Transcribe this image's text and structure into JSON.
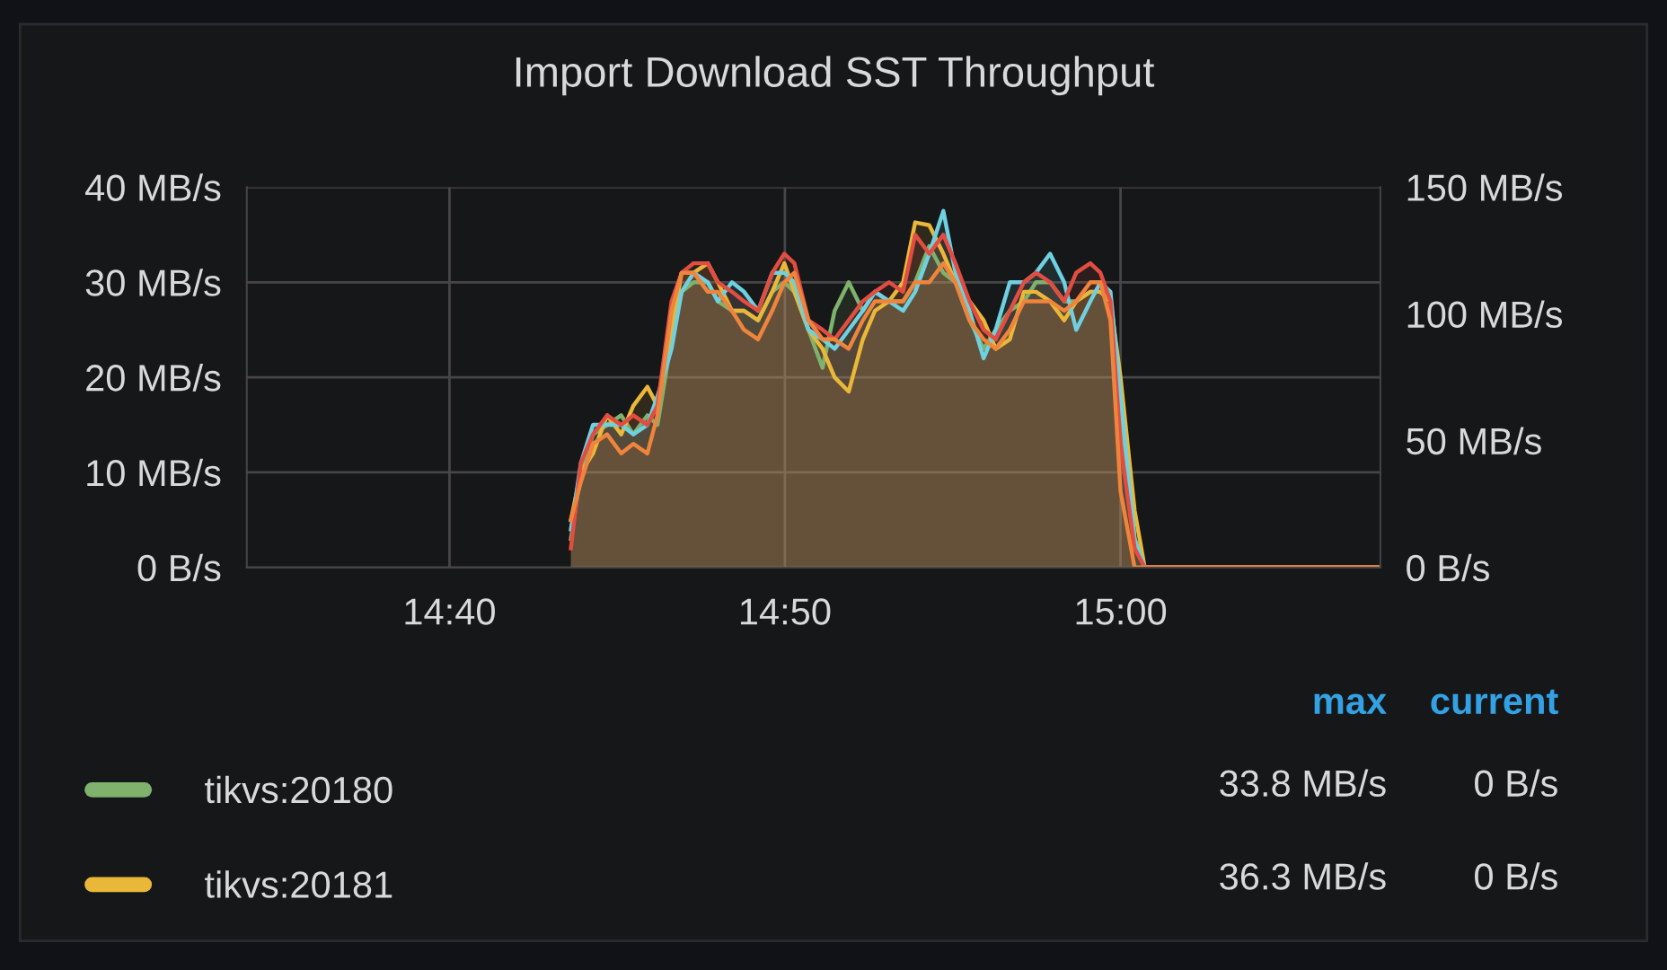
{
  "chart_data": {
    "type": "area",
    "title": "Import Download SST Throughput",
    "x": [
      14.727,
      14.732,
      14.738,
      14.745,
      14.752,
      14.758,
      14.765,
      14.77,
      14.777,
      14.782,
      14.788,
      14.795,
      14.8,
      14.807,
      14.813,
      14.82,
      14.827,
      14.833,
      14.838,
      14.845,
      14.852,
      14.858,
      14.865,
      14.872,
      14.878,
      14.885,
      14.892,
      14.898,
      14.905,
      14.912,
      14.918,
      14.925,
      14.932,
      14.938,
      14.945,
      14.952,
      14.958,
      14.965,
      14.972,
      14.978,
      14.985,
      14.99,
      14.995,
      15.0,
      15.007,
      15.012,
      15.033,
      15.129
    ],
    "series": [
      {
        "name": "tikvs:20180",
        "color": "#7eb26d",
        "values": [
          3,
          10,
          14,
          15,
          16,
          14,
          16,
          15,
          24,
          29,
          30,
          30,
          28,
          27,
          27,
          26,
          29,
          30,
          29,
          25,
          21,
          27,
          30,
          27,
          29,
          28,
          28,
          30,
          33.8,
          31,
          30,
          26,
          23,
          25,
          27,
          28,
          30,
          30,
          28,
          28,
          29,
          29,
          28,
          16,
          3,
          0,
          0,
          0
        ]
      },
      {
        "name": "tikvs:20181",
        "color": "#eab839",
        "values": [
          5,
          10,
          12,
          16,
          14,
          17,
          19,
          17,
          25,
          31,
          31,
          32,
          30,
          27,
          27,
          26,
          29,
          32,
          29,
          25,
          23,
          20,
          18.5,
          24,
          27,
          28,
          30,
          36.3,
          36,
          33,
          30,
          28,
          26,
          23,
          24,
          29,
          29,
          28,
          26,
          28,
          29,
          29,
          28,
          20,
          6,
          0,
          0,
          0
        ]
      },
      {
        "color": "#6ed0e0",
        "values": [
          4,
          11,
          15,
          15,
          15,
          14,
          15,
          18,
          23,
          29,
          31,
          30,
          28,
          30,
          29,
          27,
          31,
          31,
          30,
          25,
          24,
          23,
          25,
          27,
          29,
          28,
          27,
          29,
          33,
          37.5,
          31,
          27,
          22,
          25,
          30,
          30,
          31,
          33,
          30,
          25,
          28,
          30,
          29,
          18,
          3,
          0,
          0,
          0
        ]
      },
      {
        "color": "#e24d42",
        "values": [
          2,
          11,
          14,
          16,
          15,
          16,
          15,
          17,
          28,
          31,
          32,
          32,
          30,
          29,
          28,
          27,
          31,
          33,
          32,
          26,
          25,
          24,
          26,
          28,
          29,
          30,
          29,
          35,
          33,
          35,
          32,
          28,
          25,
          24,
          27,
          30,
          31,
          30,
          28,
          31,
          32,
          31,
          28,
          13,
          2,
          0,
          0,
          0
        ]
      },
      {
        "color": "#ef843c",
        "values": [
          5,
          9,
          13,
          14,
          12,
          13,
          12,
          16,
          27,
          31,
          31,
          29,
          29,
          27,
          25,
          24,
          27,
          30,
          31,
          26,
          24,
          24,
          23,
          26,
          28,
          28,
          28,
          30,
          30,
          32,
          30,
          26,
          24,
          23,
          25,
          28,
          28,
          28,
          27,
          28,
          30,
          30,
          26,
          8,
          0,
          0,
          0,
          0
        ]
      }
    ],
    "xlim": [
      14.566,
      15.129
    ],
    "xticks": [
      {
        "value": 14.6667,
        "label": "14:40"
      },
      {
        "value": 14.8333,
        "label": "14:50"
      },
      {
        "value": 15.0,
        "label": "15:00"
      }
    ],
    "ylim": [
      0,
      40
    ],
    "yticks": [
      {
        "value": 0,
        "label": "0 B/s"
      },
      {
        "value": 10,
        "label": "10 MB/s"
      },
      {
        "value": 20,
        "label": "20 MB/s"
      },
      {
        "value": 30,
        "label": "30 MB/s"
      },
      {
        "value": 40,
        "label": "40 MB/s"
      }
    ],
    "y2lim": [
      0,
      150
    ],
    "y2ticks": [
      {
        "value": 0,
        "label": "0 B/s"
      },
      {
        "value": 50,
        "label": "50 MB/s"
      },
      {
        "value": 100,
        "label": "100 MB/s"
      },
      {
        "value": 150,
        "label": "150 MB/s"
      }
    ],
    "grid": true,
    "legend": "bottom",
    "annotations": [
      "max",
      "current",
      "33.8 MB/s",
      "0 B/s",
      "36.3 MB/s",
      "0 B/s"
    ]
  }
}
